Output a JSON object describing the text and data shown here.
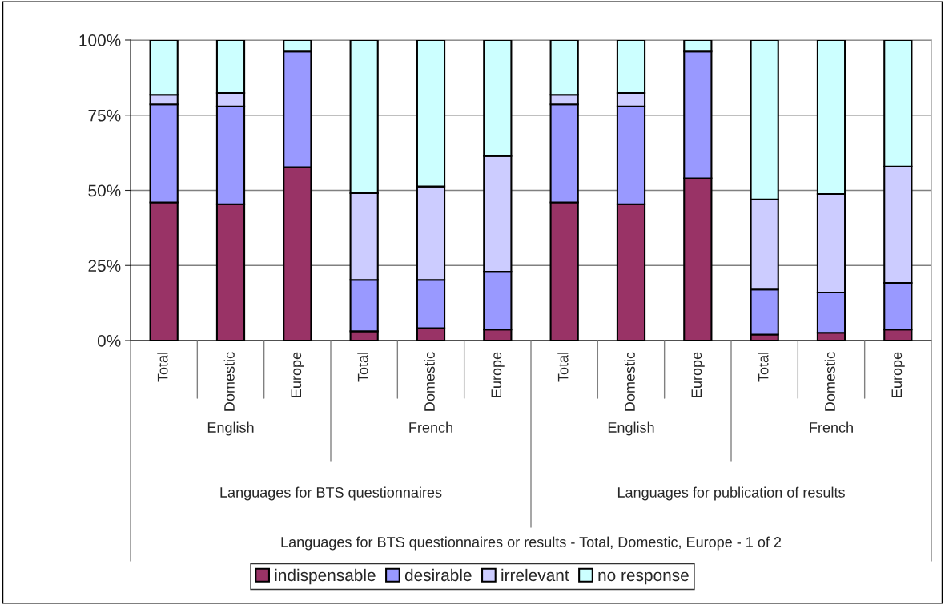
{
  "chart_data": {
    "type": "bar",
    "stacked": true,
    "categories": [
      "Total",
      "Domestic",
      "Europe",
      "Total",
      "Domestic",
      "Europe",
      "Total",
      "Domestic",
      "Europe",
      "Total",
      "Domestic",
      "Europe"
    ],
    "series": [
      {
        "name": "indispensable",
        "color": "#993366",
        "values": [
          46.0,
          45.4,
          57.7,
          3.1,
          4.1,
          3.7,
          46.0,
          45.4,
          54.0,
          2.0,
          2.6,
          3.7
        ]
      },
      {
        "name": "desirable",
        "color": "#9999ff",
        "values": [
          32.6,
          32.5,
          38.5,
          17.1,
          16.1,
          19.2,
          32.6,
          32.5,
          42.2,
          15.0,
          13.4,
          15.5
        ]
      },
      {
        "name": "irrelevant",
        "color": "#ccccff",
        "values": [
          3.2,
          4.5,
          0,
          28.9,
          31.1,
          38.5,
          3.2,
          4.5,
          0,
          30.0,
          32.8,
          38.7
        ]
      },
      {
        "name": "no response",
        "color": "#ccffff",
        "values": [
          18.2,
          17.6,
          3.8,
          50.9,
          48.7,
          38.6,
          18.2,
          17.6,
          3.8,
          53.0,
          51.2,
          42.1
        ]
      }
    ],
    "annotations": [
      "English",
      "French",
      "English",
      "French",
      "Languages for BTS questionnaires",
      "Languages for publication of results",
      "Languages for BTS questionnaires or results - Total, Domestic, Europe - 1 of 2"
    ],
    "ylim": [
      0,
      100
    ],
    "yticks": [
      {
        "value": 0,
        "label": "0%"
      },
      {
        "value": 25,
        "label": "25%"
      },
      {
        "value": 50,
        "label": "50%"
      },
      {
        "value": 75,
        "label": "75%"
      },
      {
        "value": 100,
        "label": "100%"
      }
    ],
    "grid": "y",
    "legend": "bottom"
  }
}
